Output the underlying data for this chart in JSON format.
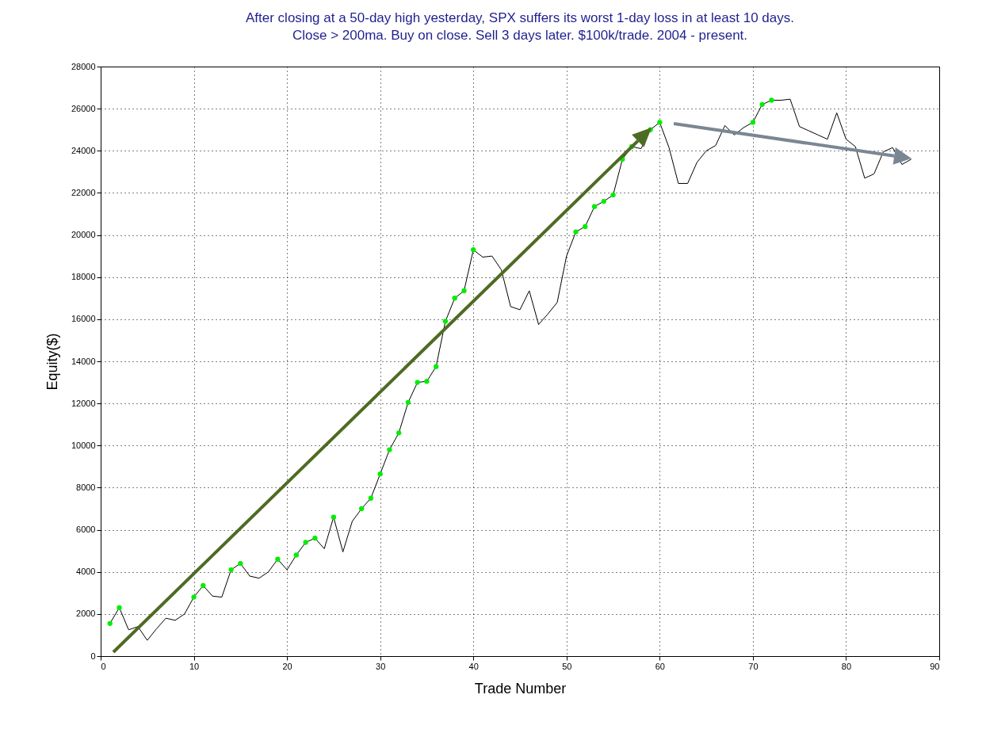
{
  "chart_data": {
    "type": "line",
    "title": "After closing at a 50-day high yesterday, SPX suffers its worst 1-day loss in at least 10 days.\nClose > 200ma. Buy on close. Sell 3 days later. $100k/trade. 2004 - present.",
    "xlabel": "Trade Number",
    "ylabel": "Equity($)",
    "x": [
      1,
      2,
      3,
      4,
      5,
      6,
      7,
      8,
      9,
      10,
      11,
      12,
      13,
      14,
      15,
      16,
      17,
      18,
      19,
      20,
      21,
      22,
      23,
      24,
      25,
      26,
      27,
      28,
      29,
      30,
      31,
      32,
      33,
      34,
      35,
      36,
      37,
      38,
      39,
      40,
      41,
      42,
      43,
      44,
      45,
      46,
      47,
      48,
      49,
      50,
      51,
      52,
      53,
      54,
      55,
      56,
      57,
      58,
      59,
      60,
      61,
      62,
      63,
      64,
      65,
      66,
      67,
      68,
      69,
      70,
      71,
      72,
      73,
      74,
      75,
      76,
      77,
      78,
      79,
      80,
      81,
      82,
      83,
      84,
      85,
      86,
      87
    ],
    "series": [
      {
        "color": "#000000",
        "values": [
          1550,
          2300,
          1250,
          1400,
          750,
          1300,
          1800,
          1700,
          2000,
          2800,
          3350,
          2850,
          2800,
          4100,
          4400,
          3800,
          3700,
          4000,
          4600,
          4100,
          4800,
          5400,
          5600,
          5100,
          6600,
          4950,
          6400,
          7000,
          7500,
          8650,
          9800,
          10600,
          12050,
          13000,
          13050,
          13750,
          15900,
          17000,
          17350,
          19300,
          18950,
          19000,
          18350,
          16600,
          16450,
          17350,
          15750,
          16250,
          16800,
          19000,
          20150,
          20400,
          21350,
          21600,
          21900,
          23600,
          24200,
          24100,
          25000,
          25350,
          24150,
          22450,
          22450,
          23450,
          24000,
          24250,
          25200,
          24750,
          25100,
          25350,
          26200,
          26400,
          26400,
          26450,
          25150,
          24950,
          24750,
          24550,
          25800,
          24550,
          24200,
          22700,
          22900,
          23950,
          24150,
          23350,
          23600
        ]
      },
      {
        "type": "scatter",
        "color": "#00ee00",
        "marker": "circle",
        "x": [
          1,
          2,
          10,
          11,
          14,
          15,
          19,
          21,
          22,
          23,
          25,
          28,
          29,
          30,
          31,
          32,
          33,
          34,
          35,
          36,
          37,
          38,
          39,
          40,
          51,
          52,
          53,
          54,
          55,
          56,
          57,
          59,
          60,
          70,
          71,
          72
        ],
        "values": [
          1550,
          2300,
          2800,
          3350,
          4100,
          4400,
          4600,
          4800,
          5400,
          5600,
          6600,
          7000,
          7500,
          8650,
          9800,
          10600,
          12050,
          13000,
          13050,
          13750,
          15900,
          17000,
          17350,
          19300,
          20150,
          20400,
          21350,
          21600,
          21900,
          23600,
          24200,
          25000,
          25350,
          25350,
          26200,
          26400
        ]
      }
    ],
    "xlim": [
      0,
      90
    ],
    "xticks": [
      0,
      10,
      20,
      30,
      40,
      50,
      60,
      70,
      80,
      90
    ],
    "ylim": [
      0,
      28000
    ],
    "yticks": [
      0,
      2000,
      4000,
      6000,
      8000,
      10000,
      12000,
      14000,
      16000,
      18000,
      20000,
      22000,
      24000,
      26000,
      28000
    ],
    "grid": true
  }
}
